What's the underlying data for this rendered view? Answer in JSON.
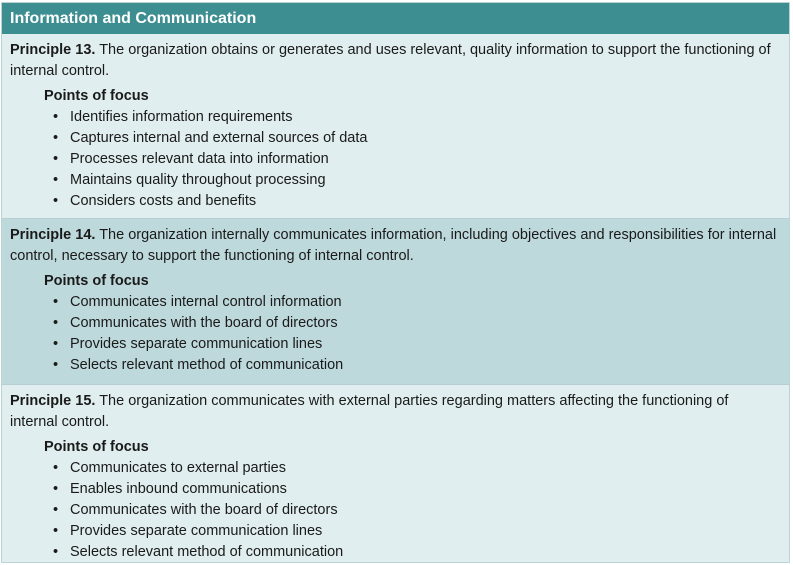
{
  "header": {
    "title": "Information and Communication"
  },
  "principles": [
    {
      "title": "Principle 13.",
      "text": " The organization obtains or generates and uses relevant, quality information to support the functioning of internal control.",
      "focus_title": "Points of focus",
      "points": [
        "Identifies information requirements",
        "Captures internal and external sources of data",
        "Processes relevant data into information",
        "Maintains quality throughout processing",
        "Considers costs and benefits"
      ]
    },
    {
      "title": "Principle 14.",
      "text": " The organization internally communicates information, including objectives and responsibilities for internal control, necessary to support the functioning of internal control.",
      "focus_title": "Points of focus",
      "points": [
        "Communicates internal control information",
        "Communicates with the board of directors",
        "Provides separate communication lines",
        "Selects relevant method of communication"
      ]
    },
    {
      "title": "Principle 15.",
      "text": " The organization communicates with external parties regarding matters affecting the functioning of internal control.",
      "focus_title": "Points of focus",
      "points": [
        "Communicates to external parties",
        "Enables inbound communications",
        "Communicates with the board of directors",
        "Provides separate communication lines",
        "Selects relevant method of communication"
      ]
    }
  ],
  "bullet_glyph": "•",
  "colors": {
    "header_bg": "#3d8e91",
    "light_row": "#e0eeef",
    "dark_row": "#bed9dc"
  }
}
